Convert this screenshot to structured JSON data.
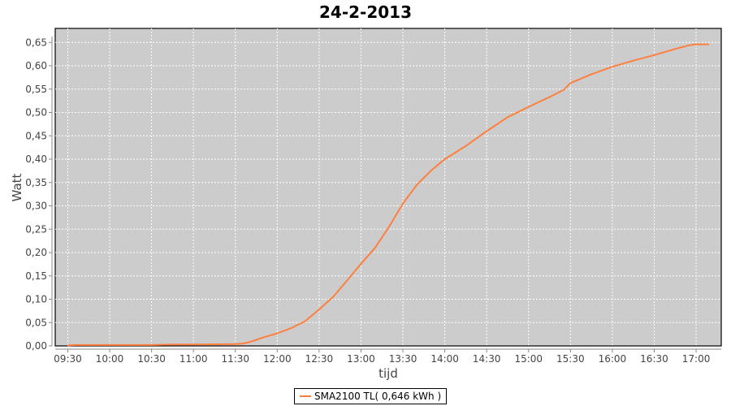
{
  "chart_data": {
    "type": "line",
    "title": "24-2-2013",
    "xlabel": "tijd",
    "ylabel": "Watt",
    "xlim": [
      "09:21",
      "17:18"
    ],
    "ylim": [
      0,
      0.68
    ],
    "x_ticks": [
      "09:30",
      "10:00",
      "10:30",
      "11:00",
      "11:30",
      "12:00",
      "12:30",
      "13:00",
      "13:30",
      "14:00",
      "14:30",
      "15:00",
      "15:30",
      "16:00",
      "16:30",
      "17:00"
    ],
    "y_ticks": [
      "0,00",
      "0,05",
      "0,10",
      "0,15",
      "0,20",
      "0,25",
      "0,30",
      "0,35",
      "0,40",
      "0,45",
      "0,50",
      "0,55",
      "0,60",
      "0,65"
    ],
    "grid": true,
    "legend_position": "bottom",
    "background_color": "#cccccc",
    "series": [
      {
        "name": "SMA2100 TL( 0,646 kWh )",
        "color": "#ff7f3f",
        "x": [
          "09:30",
          "09:35",
          "10:00",
          "10:30",
          "10:45",
          "11:00",
          "11:30",
          "11:35",
          "11:40",
          "11:45",
          "11:50",
          "12:00",
          "12:10",
          "12:20",
          "12:30",
          "12:40",
          "12:50",
          "13:00",
          "13:10",
          "13:20",
          "13:30",
          "13:40",
          "13:50",
          "14:00",
          "14:15",
          "14:30",
          "14:45",
          "15:00",
          "15:15",
          "15:25",
          "15:30",
          "15:45",
          "16:00",
          "16:15",
          "16:30",
          "16:45",
          "16:55",
          "17:00",
          "17:09"
        ],
        "y": [
          0.001,
          0.002,
          0.002,
          0.002,
          0.003,
          0.003,
          0.004,
          0.005,
          0.008,
          0.013,
          0.018,
          0.027,
          0.038,
          0.053,
          0.078,
          0.105,
          0.14,
          0.176,
          0.21,
          0.255,
          0.305,
          0.345,
          0.375,
          0.4,
          0.428,
          0.46,
          0.49,
          0.512,
          0.533,
          0.548,
          0.563,
          0.582,
          0.598,
          0.611,
          0.623,
          0.636,
          0.644,
          0.646,
          0.646
        ]
      }
    ]
  }
}
